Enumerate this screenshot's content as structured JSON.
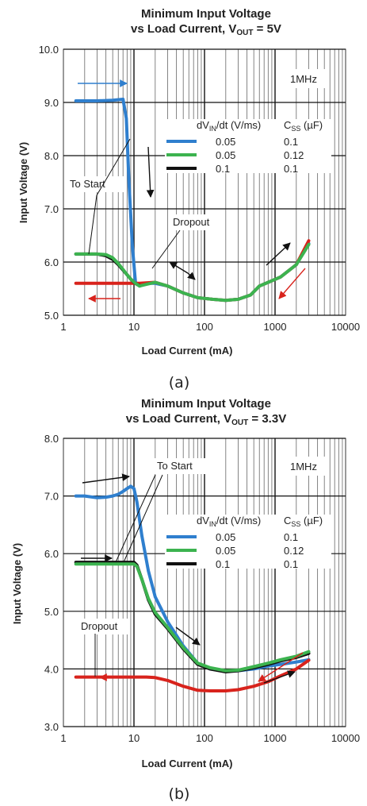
{
  "chart_data": [
    {
      "type": "line",
      "caption": "(a)",
      "title_line1": "Minimum Input Voltage",
      "title_line2": "vs Load Current, V",
      "title_sub": "OUT",
      "title_tail": " = 5V",
      "xlabel": "Load Current (mA)",
      "ylabel": "Input Voltage (V)",
      "xscale": "log",
      "xlim": [
        1,
        10000
      ],
      "ylim": [
        5.0,
        10.0
      ],
      "xticks": [
        "1",
        "10",
        "100",
        "1000",
        "10000"
      ],
      "yticks": [
        "5.0",
        "6.0",
        "7.0",
        "8.0",
        "9.0",
        "10.0"
      ],
      "grid": true,
      "freq_label": "1MHz",
      "annotations": [
        "To Start",
        "Dropout"
      ],
      "legend": {
        "header_a": "dV",
        "header_a_sub": "IN",
        "header_a_tail": "/dt (V/ms)",
        "header_b": "C",
        "header_b_sub": "SS",
        "header_b_tail": " (µF)",
        "rows": [
          {
            "c1": "0.05",
            "c2": "0.1",
            "color": "#2f7fce"
          },
          {
            "c1": "0.05",
            "c2": "0.12",
            "color": "#3cb34f"
          },
          {
            "c1": "0.1",
            "c2": "0.1",
            "color": "#111111"
          }
        ]
      },
      "series": [
        {
          "color": "#2f7fce",
          "x": [
            1.5,
            3,
            5,
            7,
            7.8,
            8.5,
            9.5,
            10.5,
            12,
            15,
            20,
            30,
            50,
            80,
            130,
            200,
            300,
            450,
            600,
            800,
            1200,
            2000,
            3000
          ],
          "y": [
            9.03,
            9.03,
            9.04,
            9.06,
            8.7,
            7.5,
            6.3,
            5.62,
            5.55,
            5.6,
            5.6,
            5.55,
            5.42,
            5.33,
            5.3,
            5.28,
            5.3,
            5.38,
            5.55,
            5.62,
            5.72,
            5.95,
            6.35
          ]
        },
        {
          "color": "#d8231c",
          "x": [
            1.5,
            3,
            6,
            9,
            12,
            20,
            30,
            50,
            80,
            130,
            200,
            300,
            450,
            600,
            800,
            1200,
            2000,
            3000
          ],
          "y": [
            5.6,
            5.6,
            5.6,
            5.6,
            5.6,
            5.62,
            5.55,
            5.42,
            5.33,
            5.3,
            5.28,
            5.3,
            5.38,
            5.55,
            5.62,
            5.72,
            5.95,
            6.4
          ]
        },
        {
          "color": "#111111",
          "x": [
            1.5,
            3,
            4,
            5,
            6,
            7,
            8,
            9,
            10,
            11,
            12
          ],
          "y": [
            6.15,
            6.15,
            6.12,
            6.05,
            5.95,
            5.85,
            5.76,
            5.68,
            5.62,
            5.58,
            5.56
          ]
        },
        {
          "color": "#3cb34f",
          "x": [
            1.5,
            3,
            4,
            5,
            6,
            7,
            8,
            9,
            10.5,
            12,
            15,
            20,
            30,
            50,
            80,
            130,
            200,
            300,
            450,
            600,
            800,
            1200,
            2000,
            3000
          ],
          "y": [
            6.15,
            6.15,
            6.14,
            6.08,
            5.97,
            5.86,
            5.76,
            5.68,
            5.6,
            5.55,
            5.58,
            5.62,
            5.55,
            5.42,
            5.33,
            5.3,
            5.28,
            5.3,
            5.38,
            5.55,
            5.62,
            5.72,
            5.95,
            6.33
          ]
        }
      ]
    },
    {
      "type": "line",
      "caption": "(b)",
      "title_line1": "Minimum Input Voltage",
      "title_line2": "vs Load Current, V",
      "title_sub": "OUT",
      "title_tail": " = 3.3V",
      "xlabel": "Load Current (mA)",
      "ylabel": "Input Voltage (V)",
      "xscale": "log",
      "xlim": [
        1,
        10000
      ],
      "ylim": [
        3.0,
        8.0
      ],
      "xticks": [
        "1",
        "10",
        "100",
        "1000",
        "10000"
      ],
      "yticks": [
        "3.0",
        "4.0",
        "5.0",
        "6.0",
        "7.0",
        "8.0"
      ],
      "grid": true,
      "freq_label": "1MHz",
      "annotations": [
        "To Start",
        "Dropout"
      ],
      "legend": {
        "header_a": "dV",
        "header_a_sub": "IN",
        "header_a_tail": "/dt (V/ms)",
        "header_b": "C",
        "header_b_sub": "SS",
        "header_b_tail": " (µF)",
        "rows": [
          {
            "c1": "0.05",
            "c2": "0.1",
            "color": "#2f7fce"
          },
          {
            "c1": "0.05",
            "c2": "0.12",
            "color": "#3cb34f"
          },
          {
            "c1": "0.1",
            "c2": "0.1",
            "color": "#111111"
          }
        ]
      },
      "series": [
        {
          "color": "#2f7fce",
          "x": [
            1.5,
            2,
            3,
            4,
            5,
            6,
            7,
            8,
            9,
            10,
            11,
            13,
            16,
            20,
            30,
            50,
            80,
            120,
            200,
            300,
            500,
            800,
            1200,
            2000,
            3000
          ],
          "y": [
            7.0,
            7.0,
            6.97,
            6.98,
            7.0,
            7.03,
            7.08,
            7.13,
            7.17,
            7.13,
            6.9,
            6.3,
            5.7,
            5.25,
            4.82,
            4.4,
            4.1,
            4.0,
            3.96,
            3.97,
            4.0,
            4.05,
            4.08,
            4.12,
            4.16
          ]
        },
        {
          "color": "#d8231c",
          "x": [
            1.5,
            3,
            6,
            10,
            15,
            20,
            30,
            50,
            80,
            120,
            200,
            300,
            500,
            800,
            1200,
            2000,
            3000
          ],
          "y": [
            3.86,
            3.86,
            3.86,
            3.86,
            3.86,
            3.85,
            3.8,
            3.7,
            3.63,
            3.62,
            3.62,
            3.64,
            3.7,
            3.78,
            3.88,
            4.0,
            4.15
          ]
        },
        {
          "color": "#111111",
          "x": [
            1.5,
            3,
            5,
            8,
            10,
            11,
            13,
            16,
            20,
            30,
            50,
            80,
            120,
            200,
            300,
            500,
            800,
            1200,
            2000,
            3000
          ],
          "y": [
            5.85,
            5.85,
            5.85,
            5.85,
            5.85,
            5.8,
            5.55,
            5.2,
            4.95,
            4.7,
            4.35,
            4.08,
            4.0,
            3.95,
            3.97,
            4.02,
            4.08,
            4.14,
            4.2,
            4.27
          ]
        },
        {
          "color": "#3cb34f",
          "x": [
            1.5,
            3,
            5,
            8,
            10,
            11,
            13,
            16,
            20,
            30,
            50,
            80,
            120,
            200,
            300,
            500,
            800,
            1200,
            2000,
            3000
          ],
          "y": [
            5.82,
            5.82,
            5.82,
            5.82,
            5.82,
            5.78,
            5.55,
            5.22,
            4.98,
            4.72,
            4.37,
            4.1,
            4.02,
            3.97,
            3.98,
            4.04,
            4.1,
            4.16,
            4.22,
            4.3
          ]
        }
      ]
    }
  ]
}
